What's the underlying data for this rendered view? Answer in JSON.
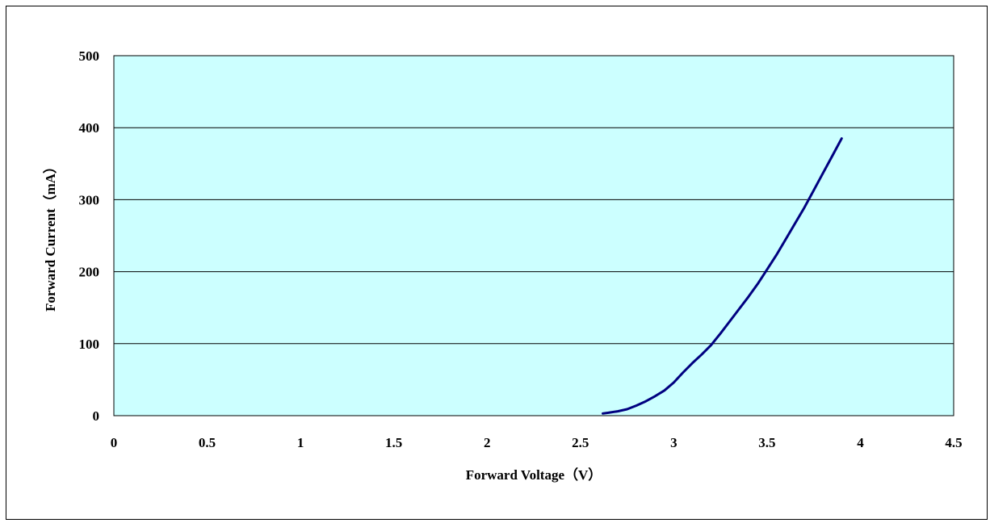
{
  "chart_data": {
    "type": "line",
    "title": "",
    "xlabel": "Forward Voltage（V）",
    "ylabel": "Forward Current（mA）",
    "xlim": [
      0,
      4.5
    ],
    "ylim": [
      0,
      500
    ],
    "x_ticks": [
      "0",
      "0.5",
      "1",
      "1.5",
      "2",
      "2.5",
      "3",
      "3.5",
      "4",
      "4.5"
    ],
    "y_ticks": [
      "0",
      "100",
      "200",
      "300",
      "400",
      "500"
    ],
    "grid": "horizontal",
    "legend": "none",
    "plot_background": "#ccffff",
    "series": [
      {
        "color": "#000080",
        "x": [
          2.62,
          2.65,
          2.7,
          2.75,
          2.8,
          2.85,
          2.9,
          2.95,
          3.0,
          3.05,
          3.1,
          3.15,
          3.2,
          3.25,
          3.3,
          3.35,
          3.4,
          3.45,
          3.5,
          3.55,
          3.6,
          3.65,
          3.7,
          3.75,
          3.8,
          3.85,
          3.9
        ],
        "y": [
          3,
          4,
          6,
          9,
          14,
          20,
          27,
          35,
          46,
          60,
          73,
          85,
          98,
          114,
          131,
          148,
          165,
          183,
          203,
          223,
          245,
          267,
          289,
          313,
          337,
          361,
          385
        ]
      }
    ]
  }
}
